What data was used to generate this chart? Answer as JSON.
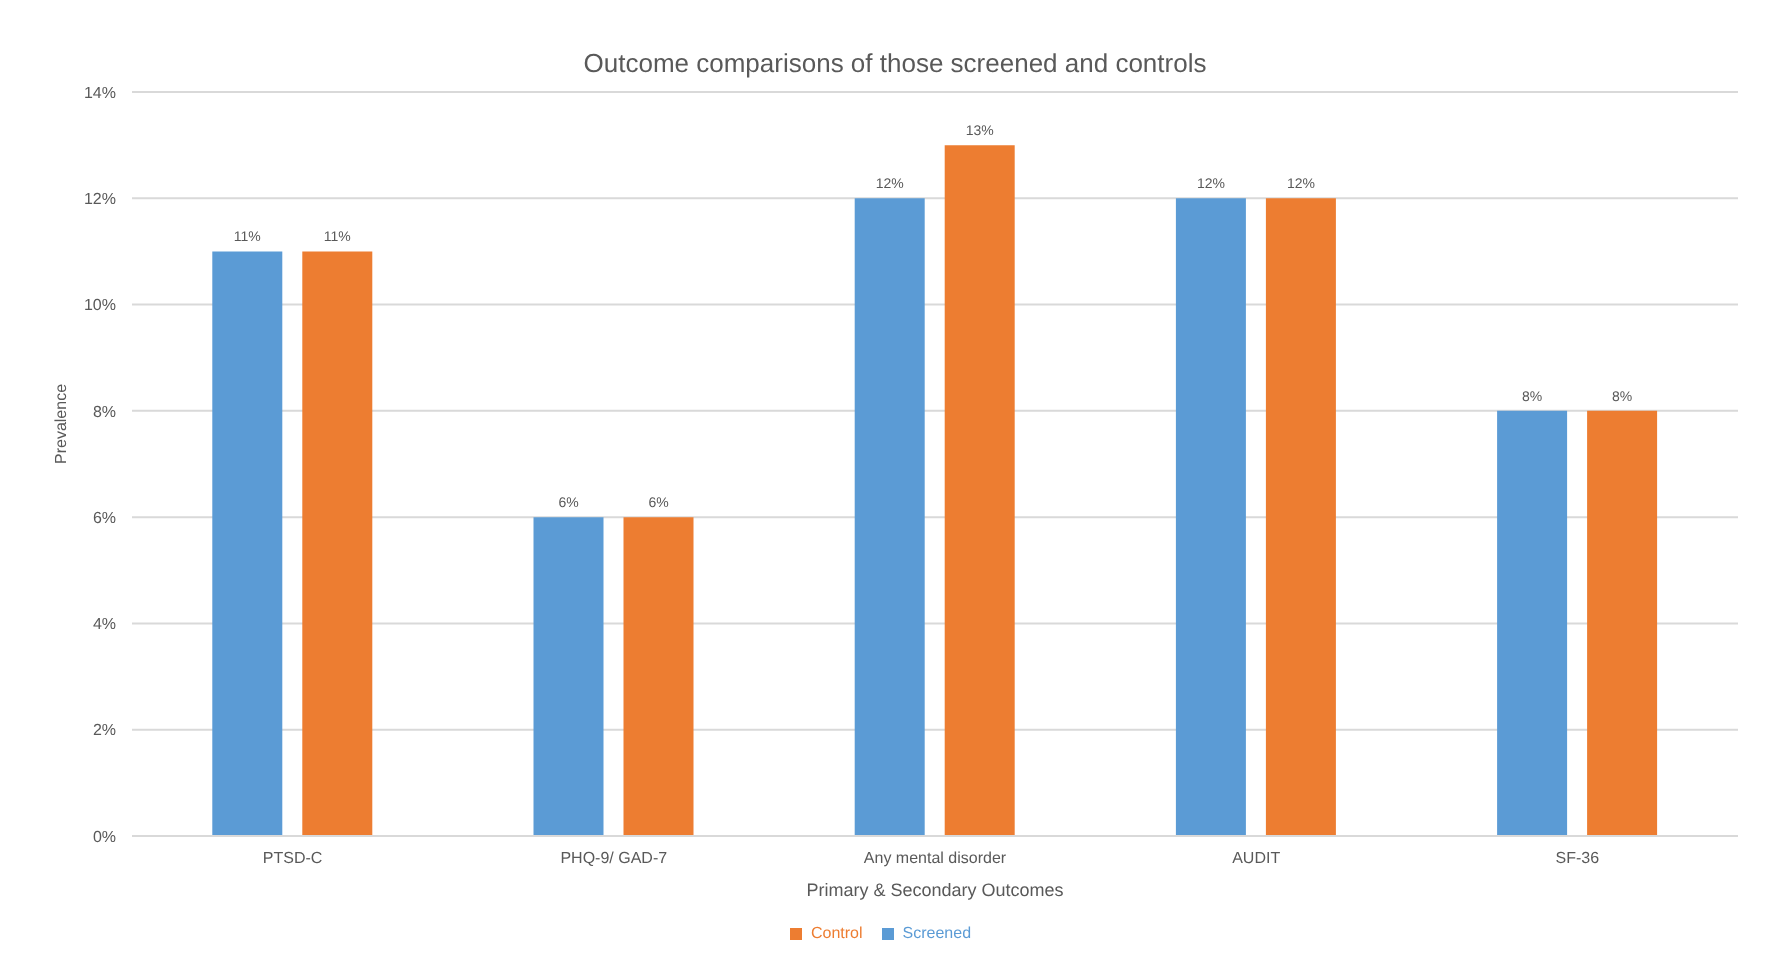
{
  "chart_data": {
    "type": "bar",
    "title": "Outcome comparisons of those screened and controls",
    "xlabel": "Primary & Secondary Outcomes",
    "ylabel": "Prevalence",
    "categories": [
      "PTSD-C",
      "PHQ-9/ GAD-7",
      "Any mental disorder",
      "AUDIT",
      "SF-36"
    ],
    "series": [
      {
        "name": "Screened",
        "color": "#5b9bd5",
        "values": [
          11,
          6,
          12,
          12,
          8
        ],
        "value_labels": [
          "11%",
          "6%",
          "12%",
          "12%",
          "8%"
        ]
      },
      {
        "name": "Control",
        "color": "#ed7d31",
        "values": [
          11,
          6,
          13,
          12,
          8
        ],
        "value_labels": [
          "11%",
          "6%",
          "13%",
          "12%",
          "8%"
        ]
      }
    ],
    "ylim": [
      0,
      14
    ],
    "yticks": [
      {
        "value": 0,
        "label": "0%"
      },
      {
        "value": 2,
        "label": "2%"
      },
      {
        "value": 4,
        "label": "4%"
      },
      {
        "value": 6,
        "label": "6%"
      },
      {
        "value": 8,
        "label": "8%"
      },
      {
        "value": 10,
        "label": "10%"
      },
      {
        "value": 12,
        "label": "12%"
      },
      {
        "value": 14,
        "label": "14%"
      }
    ],
    "grid": "y",
    "legend": "bottom"
  }
}
